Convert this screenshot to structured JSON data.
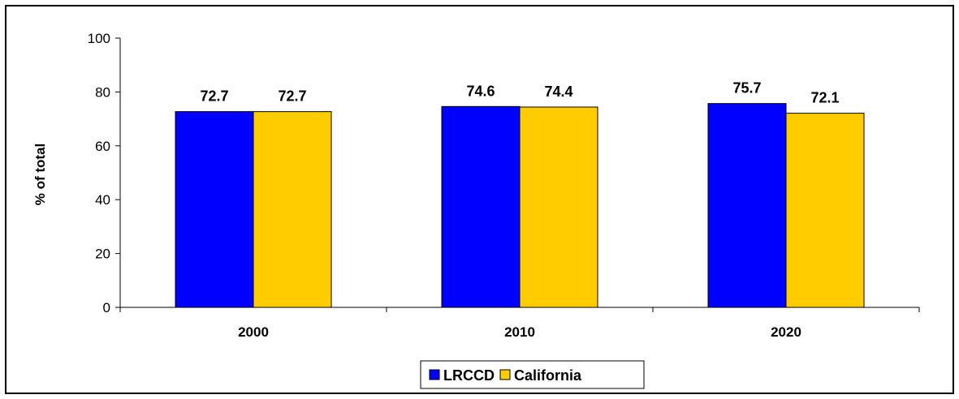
{
  "chart_data": {
    "type": "bar",
    "title": "",
    "xlabel": "",
    "ylabel": "% of total",
    "categories": [
      "2000",
      "2010",
      "2020"
    ],
    "series": [
      {
        "name": "LRCCD",
        "values": [
          72.7,
          74.6,
          75.7
        ],
        "color": "#0000ff"
      },
      {
        "name": "California",
        "values": [
          72.7,
          74.4,
          72.1
        ],
        "color": "#ffcc00"
      }
    ],
    "ylim": [
      0,
      100
    ],
    "yticks": [
      0,
      20,
      40,
      60,
      80,
      100
    ],
    "data_labels": [
      [
        "72.7",
        "74.6",
        "75.7"
      ],
      [
        "72.7",
        "74.4",
        "72.1"
      ]
    ],
    "grid": false,
    "legend": "bottom"
  }
}
